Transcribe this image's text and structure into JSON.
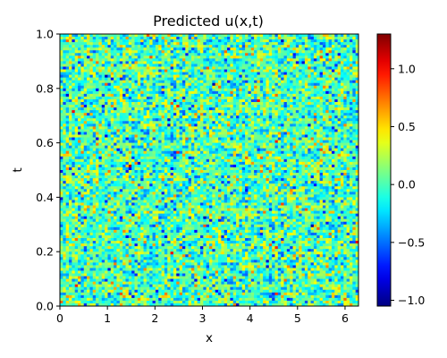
{
  "chart_data": {
    "type": "heatmap",
    "title": "Predicted u(x,t)",
    "xlabel": "x",
    "ylabel": "t",
    "xlim": [
      0,
      6.283
    ],
    "ylim": [
      0,
      1.0
    ],
    "x_ticks": [
      0,
      1,
      2,
      3,
      4,
      5,
      6
    ],
    "x_tick_labels": [
      "0",
      "1",
      "2",
      "3",
      "4",
      "5",
      "6"
    ],
    "y_ticks": [
      0,
      0.2,
      0.4,
      0.6,
      0.8,
      1.0
    ],
    "y_tick_labels": [
      "0.0",
      "0.2",
      "0.4",
      "0.6",
      "0.8",
      "1.0"
    ],
    "colorbar": {
      "colormap": "jet",
      "vmin": -1.05,
      "vmax": 1.3,
      "ticks": [
        -1.0,
        -0.5,
        0.0,
        0.5,
        1.0
      ],
      "tick_labels": [
        "−1.0",
        "−0.5",
        "0.0",
        "0.5",
        "1.0"
      ]
    },
    "grid": false,
    "field": {
      "description": "noisy field, values roughly normally distributed around 0",
      "nx": 100,
      "nt": 100,
      "mean": 0.0,
      "std": 0.28,
      "min": -1.05,
      "max": 1.3
    }
  }
}
